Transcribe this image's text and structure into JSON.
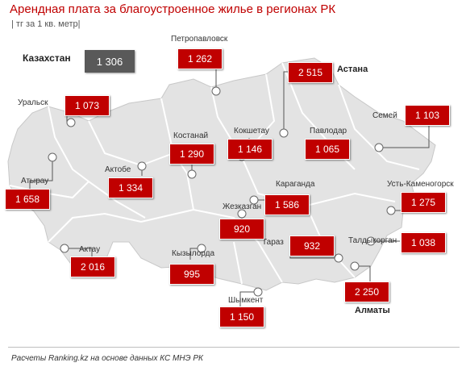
{
  "title": "Арендная плата за благоустроенное  жилье в регионах РК",
  "subtitle": "| тг за 1 кв. метр|",
  "country": {
    "name": "Казахстан",
    "value": "1 306"
  },
  "colors": {
    "accent": "#c00000",
    "map": "#e3e3e3",
    "border": "#ffffff",
    "country_box": "#595959"
  },
  "cities": [
    {
      "key": "petropavlovsk",
      "name": "Петропавловск",
      "value": "1 262"
    },
    {
      "key": "astana",
      "name": "Астана",
      "value": "2 515"
    },
    {
      "key": "uralsk",
      "name": "Уральск",
      "value": "1 073"
    },
    {
      "key": "semey",
      "name": "Семей",
      "value": "1 103"
    },
    {
      "key": "kostanay",
      "name": "Костанай",
      "value": "1 290"
    },
    {
      "key": "kokshetau",
      "name": "Кокшетау",
      "value": "1 146"
    },
    {
      "key": "pavlodar",
      "name": "Павлодар",
      "value": "1 065"
    },
    {
      "key": "atyrau",
      "name": "Атырау",
      "value": "1 658"
    },
    {
      "key": "aktobe",
      "name": "Актобе",
      "value": "1 334"
    },
    {
      "key": "karaganda",
      "name": "Караганда",
      "value": "1 586"
    },
    {
      "key": "ust-kamenogorsk",
      "name": "Усть-Каменогорск",
      "value": "1 275"
    },
    {
      "key": "zhezkazgan",
      "name": "Жезказган",
      "value": "920"
    },
    {
      "key": "aktau",
      "name": "Актау",
      "value": "2 016"
    },
    {
      "key": "taraz",
      "name": "Тараз",
      "value": "932"
    },
    {
      "key": "taldykorgan",
      "name": "Талдыкорган",
      "value": "1 038"
    },
    {
      "key": "kyzylorda",
      "name": "Кызылорда",
      "value": "995"
    },
    {
      "key": "almaty",
      "name": "Алматы",
      "value": "2 250"
    },
    {
      "key": "shymkent",
      "name": "Шымкент",
      "value": "1 150"
    }
  ],
  "footer": "Расчеты Ranking.kz на основе данных КС МНЭ РК"
}
